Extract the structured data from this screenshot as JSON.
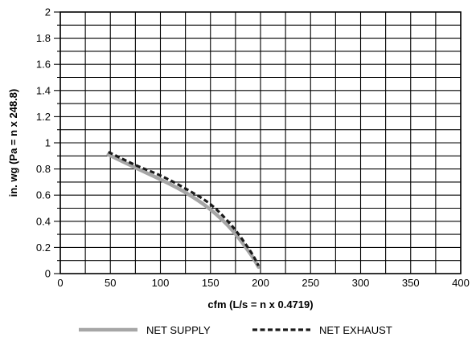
{
  "chart_data": {
    "type": "line",
    "title": "",
    "xlabel": "cfm (L/s = n x 0.4719)",
    "ylabel": "in. wg (Pa = n x 248.8)",
    "xlim": [
      0,
      400
    ],
    "ylim": [
      0,
      2
    ],
    "x_ticks": [
      "0",
      "50",
      "100",
      "150",
      "200",
      "250",
      "300",
      "350",
      "400"
    ],
    "y_ticks": [
      "0",
      "0.2",
      "0.4",
      "0.6",
      "0.8",
      "1",
      "1.2",
      "1.4",
      "1.6",
      "1.8",
      "2"
    ],
    "x_grid_step": 25,
    "y_grid_step": 0.1,
    "grid": true,
    "legend_position": "bottom",
    "series": [
      {
        "name": "NET SUPPLY",
        "color": "#a6a6a6",
        "style": "solid",
        "points": [
          [
            48,
            0.91
          ],
          [
            75,
            0.81
          ],
          [
            100,
            0.72
          ],
          [
            125,
            0.62
          ],
          [
            150,
            0.49
          ],
          [
            172,
            0.33
          ],
          [
            190,
            0.15
          ],
          [
            198,
            0.05
          ]
        ]
      },
      {
        "name": "NET EXHAUST",
        "color": "#1a1a1a",
        "style": "dashed",
        "points": [
          [
            48,
            0.93
          ],
          [
            75,
            0.83
          ],
          [
            100,
            0.75
          ],
          [
            125,
            0.65
          ],
          [
            150,
            0.53
          ],
          [
            172,
            0.36
          ],
          [
            190,
            0.17
          ],
          [
            198,
            0.06
          ]
        ]
      }
    ]
  }
}
